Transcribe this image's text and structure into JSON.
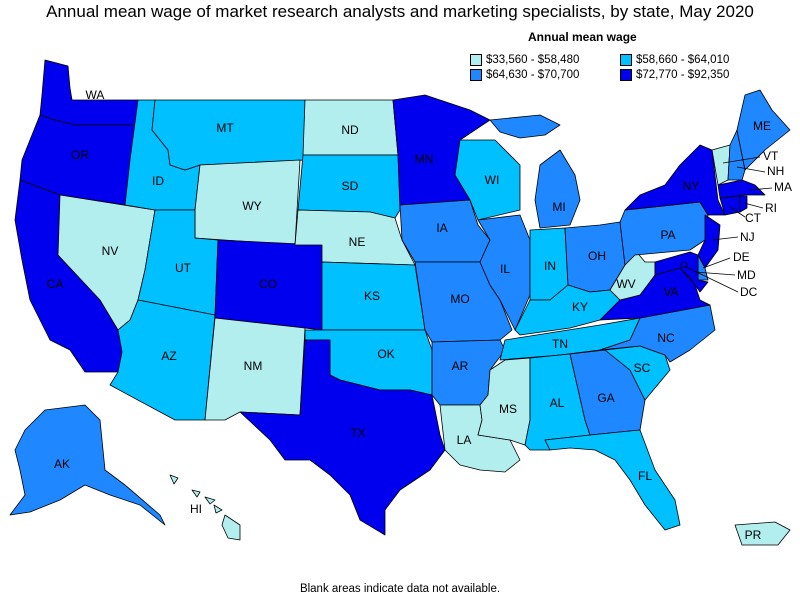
{
  "title": "Annual mean wage of market research analysts and marketing specialists, by state, May 2020",
  "legend": {
    "title": "Annual mean wage",
    "items": [
      {
        "key": "c1",
        "label": "$33,560 - $58,480",
        "color": "#b2eeee"
      },
      {
        "key": "c3",
        "label": "$58,660 - $64,010",
        "color": "#00c0ff"
      },
      {
        "key": "c2",
        "label": "$64,630 - $70,700",
        "color": "#1f87ff"
      },
      {
        "key": "c4",
        "label": "$72,770 - $92,350",
        "color": "#0000ee"
      }
    ]
  },
  "footer": "Blank areas indicate data not available.",
  "states": {
    "WA": {
      "label": "WA",
      "class": "c4"
    },
    "OR": {
      "label": "OR",
      "class": "c4"
    },
    "CA": {
      "label": "CA",
      "class": "c4"
    },
    "NV": {
      "label": "NV",
      "class": "c1"
    },
    "ID": {
      "label": "ID",
      "class": "c3"
    },
    "MT": {
      "label": "MT",
      "class": "c3"
    },
    "WY": {
      "label": "WY",
      "class": "c1"
    },
    "UT": {
      "label": "UT",
      "class": "c3"
    },
    "AZ": {
      "label": "AZ",
      "class": "c3"
    },
    "CO": {
      "label": "CO",
      "class": "c4"
    },
    "NM": {
      "label": "NM",
      "class": "c1"
    },
    "ND": {
      "label": "ND",
      "class": "c1"
    },
    "SD": {
      "label": "SD",
      "class": "c3"
    },
    "NE": {
      "label": "NE",
      "class": "c1"
    },
    "KS": {
      "label": "KS",
      "class": "c3"
    },
    "OK": {
      "label": "OK",
      "class": "c3"
    },
    "TX": {
      "label": "TX",
      "class": "c4"
    },
    "MN": {
      "label": "MN",
      "class": "c4"
    },
    "IA": {
      "label": "IA",
      "class": "c2"
    },
    "MO": {
      "label": "MO",
      "class": "c2"
    },
    "AR": {
      "label": "AR",
      "class": "c2"
    },
    "LA": {
      "label": "LA",
      "class": "c1"
    },
    "WI": {
      "label": "WI",
      "class": "c3"
    },
    "IL": {
      "label": "IL",
      "class": "c2"
    },
    "MI": {
      "label": "MI",
      "class": "c2"
    },
    "IN": {
      "label": "IN",
      "class": "c3"
    },
    "OH": {
      "label": "OH",
      "class": "c2"
    },
    "KY": {
      "label": "KY",
      "class": "c3"
    },
    "TN": {
      "label": "TN",
      "class": "c3"
    },
    "MS": {
      "label": "MS",
      "class": "c1"
    },
    "AL": {
      "label": "AL",
      "class": "c3"
    },
    "GA": {
      "label": "GA",
      "class": "c2"
    },
    "FL": {
      "label": "FL",
      "class": "c3"
    },
    "SC": {
      "label": "SC",
      "class": "c3"
    },
    "NC": {
      "label": "NC",
      "class": "c2"
    },
    "VA": {
      "label": "VA",
      "class": "c4"
    },
    "WV": {
      "label": "WV",
      "class": "c1"
    },
    "PA": {
      "label": "PA",
      "class": "c2"
    },
    "NY": {
      "label": "NY",
      "class": "c4"
    },
    "VT": {
      "label": "VT",
      "class": "c1"
    },
    "NH": {
      "label": "NH",
      "class": "c2"
    },
    "ME": {
      "label": "ME",
      "class": "c2"
    },
    "MA": {
      "label": "MA",
      "class": "c4"
    },
    "RI": {
      "label": "RI",
      "class": "c4"
    },
    "CT": {
      "label": "CT",
      "class": "c4"
    },
    "NJ": {
      "label": "NJ",
      "class": "c4"
    },
    "DE": {
      "label": "DE",
      "class": "c2"
    },
    "MD": {
      "label": "MD",
      "class": "c4"
    },
    "DC": {
      "label": "DC",
      "class": "c4"
    },
    "AK": {
      "label": "AK",
      "class": "c2"
    },
    "HI": {
      "label": "HI",
      "class": "c1"
    },
    "PR": {
      "label": "PR",
      "class": "c1"
    }
  }
}
